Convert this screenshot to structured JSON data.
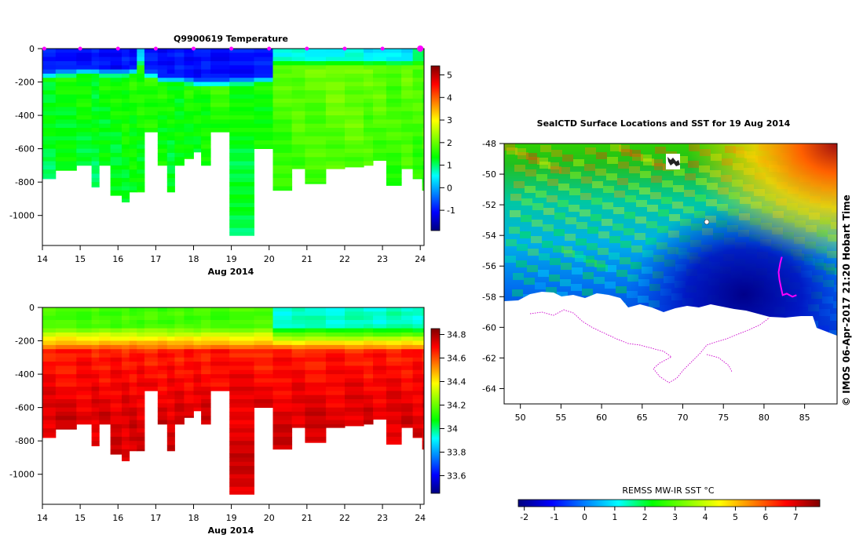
{
  "chart_data": [
    {
      "type": "heatmap",
      "title": "Q9900619  Temperature",
      "xlabel": "Aug 2014",
      "ylabel": "",
      "x_ticks": [
        "14",
        "15",
        "16",
        "17",
        "18",
        "19",
        "20",
        "21",
        "22",
        "23",
        "24"
      ],
      "y_ticks": [
        "0",
        "-200",
        "-400",
        "-600",
        "-800",
        "-1000"
      ],
      "xlim": [
        14,
        24.1
      ],
      "ylim": [
        -1180,
        0
      ],
      "colorbar": {
        "ticks": [
          "-1",
          "0",
          "1",
          "2",
          "3",
          "4",
          "5"
        ],
        "range": [
          -1.9,
          5.4
        ],
        "stops": [
          "#00007f",
          "#0000ff",
          "#0080ff",
          "#00ffff",
          "#00ff00",
          "#80ff00",
          "#ffff00",
          "#ff8000",
          "#ff0000",
          "#800000"
        ]
      },
      "profile_markers": [
        14.05,
        15.0,
        16.0,
        17.0,
        18.0,
        19.0,
        20.0,
        21.0,
        22.0,
        23.0,
        24.0
      ],
      "profiles": [
        {
          "t": 14.0,
          "depth": 780,
          "surf": -1.0,
          "cold_depth": 130,
          "deep": 1.3
        },
        {
          "t": 14.35,
          "depth": 730,
          "surf": -1.0,
          "cold_depth": 120,
          "deep": 1.4
        },
        {
          "t": 14.9,
          "depth": 700,
          "surf": -1.0,
          "cold_depth": 110,
          "deep": 1.4
        },
        {
          "t": 15.3,
          "depth": 830,
          "surf": -1.0,
          "cold_depth": 110,
          "deep": 1.3
        },
        {
          "t": 15.5,
          "depth": 700,
          "surf": -1.0,
          "cold_depth": 120,
          "deep": 1.4
        },
        {
          "t": 15.8,
          "depth": 880,
          "surf": -1.0,
          "cold_depth": 120,
          "deep": 1.4
        },
        {
          "t": 16.1,
          "depth": 920,
          "surf": -1.0,
          "cold_depth": 120,
          "deep": 1.5
        },
        {
          "t": 16.3,
          "depth": 860,
          "surf": -1.0,
          "cold_depth": 110,
          "deep": 1.5
        },
        {
          "t": 16.5,
          "depth": 860,
          "surf": 0.3,
          "cold_depth": 60,
          "deep": 1.5
        },
        {
          "t": 16.7,
          "depth": 500,
          "surf": -1.0,
          "cold_depth": 130,
          "deep": 1.6
        },
        {
          "t": 17.05,
          "depth": 700,
          "surf": -1.0,
          "cold_depth": 160,
          "deep": 1.5
        },
        {
          "t": 17.3,
          "depth": 860,
          "surf": -1.0,
          "cold_depth": 160,
          "deep": 1.4
        },
        {
          "t": 17.5,
          "depth": 700,
          "surf": -1.0,
          "cold_depth": 160,
          "deep": 1.4
        },
        {
          "t": 17.75,
          "depth": 660,
          "surf": -1.0,
          "cold_depth": 170,
          "deep": 1.5
        },
        {
          "t": 18.0,
          "depth": 620,
          "surf": -1.0,
          "cold_depth": 180,
          "deep": 1.4
        },
        {
          "t": 18.2,
          "depth": 700,
          "surf": -1.0,
          "cold_depth": 180,
          "deep": 1.5
        },
        {
          "t": 18.45,
          "depth": 500,
          "surf": -1.0,
          "cold_depth": 180,
          "deep": 1.6
        },
        {
          "t": 18.95,
          "depth": 1120,
          "surf": -1.0,
          "cold_depth": 170,
          "deep": 1.4
        },
        {
          "t": 19.6,
          "depth": 600,
          "surf": -1.0,
          "cold_depth": 160,
          "deep": 1.5
        },
        {
          "t": 20.1,
          "depth": 850,
          "surf": 0.7,
          "cold_depth": 60,
          "deep": 1.8
        },
        {
          "t": 20.6,
          "depth": 720,
          "surf": 0.6,
          "cold_depth": 60,
          "deep": 1.9
        },
        {
          "t": 20.95,
          "depth": 810,
          "surf": 0.5,
          "cold_depth": 60,
          "deep": 1.9
        },
        {
          "t": 21.5,
          "depth": 720,
          "surf": 0.6,
          "cold_depth": 60,
          "deep": 2.0
        },
        {
          "t": 22.0,
          "depth": 710,
          "surf": 0.6,
          "cold_depth": 60,
          "deep": 2.0
        },
        {
          "t": 22.5,
          "depth": 700,
          "surf": 0.4,
          "cold_depth": 60,
          "deep": 1.9
        },
        {
          "t": 22.75,
          "depth": 670,
          "surf": 0.5,
          "cold_depth": 60,
          "deep": 1.9
        },
        {
          "t": 23.1,
          "depth": 820,
          "surf": 0.3,
          "cold_depth": 60,
          "deep": 1.8
        },
        {
          "t": 23.5,
          "depth": 720,
          "surf": 0.3,
          "cold_depth": 60,
          "deep": 1.9
        },
        {
          "t": 23.8,
          "depth": 780,
          "surf": 1.0,
          "cold_depth": 60,
          "deep": 1.8
        },
        {
          "t": 24.05,
          "depth": 850,
          "surf": 1.0,
          "cold_depth": 60,
          "deep": 1.8
        }
      ]
    },
    {
      "type": "heatmap",
      "title": "",
      "xlabel": "Aug 2014",
      "ylabel": "",
      "x_ticks": [
        "14",
        "15",
        "16",
        "17",
        "18",
        "19",
        "20",
        "21",
        "22",
        "23",
        "24"
      ],
      "y_ticks": [
        "0",
        "-200",
        "-400",
        "-600",
        "-800",
        "-1000"
      ],
      "xlim": [
        14,
        24.1
      ],
      "ylim": [
        -1180,
        0
      ],
      "colorbar": {
        "ticks": [
          "33.6",
          "33.8",
          "34",
          "34.2",
          "34.4",
          "34.6",
          "34.8"
        ],
        "range": [
          33.45,
          34.85
        ],
        "stops": [
          "#00007f",
          "#0000ff",
          "#0080ff",
          "#00ffff",
          "#00ff00",
          "#80ff00",
          "#ffff00",
          "#ff8000",
          "#ff0000",
          "#800000"
        ]
      },
      "surface_values": {
        "before_day20": 34.15,
        "after_day20": 33.95
      }
    },
    {
      "type": "heatmap",
      "title": "SealCTD Surface Locations and SST for 19 Aug 2014",
      "xlabel": "",
      "ylabel": "",
      "x_ticks": [
        "50",
        "55",
        "60",
        "65",
        "70",
        "75",
        "80",
        "85"
      ],
      "y_ticks": [
        "-48",
        "-50",
        "-52",
        "-54",
        "-56",
        "-58",
        "-60",
        "-62",
        "-64"
      ],
      "xlim": [
        48,
        89
      ],
      "ylim": [
        -65,
        -48
      ],
      "colorbar": {
        "label": "REMSS MW-IR SST °C",
        "ticks": [
          "-2",
          "-1",
          "0",
          "1",
          "2",
          "3",
          "4",
          "5",
          "6",
          "7"
        ],
        "range": [
          -2.2,
          7.8
        ],
        "stops": [
          "#00007f",
          "#0000ff",
          "#0080ff",
          "#00ffff",
          "#00ff00",
          "#80ff00",
          "#ffff00",
          "#ff8000",
          "#ff0000",
          "#800000"
        ]
      },
      "land_outline_color": "#cc00cc",
      "track_color": "#ff00ff",
      "track_points": [
        [
          82.2,
          -55.4
        ],
        [
          82.0,
          -55.8
        ],
        [
          81.8,
          -56.4
        ],
        [
          81.9,
          -56.9
        ],
        [
          82.1,
          -57.4
        ],
        [
          82.3,
          -57.9
        ],
        [
          82.8,
          -57.8
        ],
        [
          83.5,
          -58.0
        ],
        [
          84.0,
          -57.9
        ]
      ],
      "side_credit": "© IMOS 06-Apr-2017 21:20 Hobart Time"
    }
  ]
}
